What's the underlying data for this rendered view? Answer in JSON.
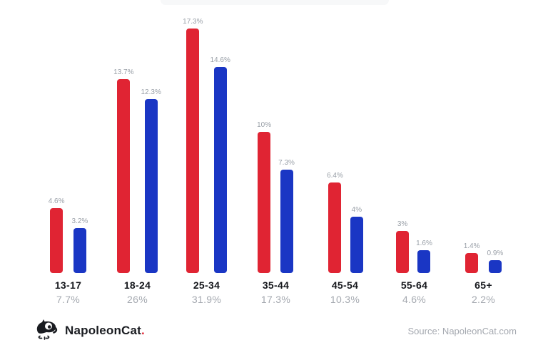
{
  "chart_data": {
    "type": "bar",
    "categories": [
      "13-17",
      "18-24",
      "25-34",
      "35-44",
      "45-54",
      "55-64",
      "65+"
    ],
    "series": [
      {
        "name": "red",
        "color": "#e02433",
        "values": [
          4.6,
          13.7,
          17.3,
          10,
          6.4,
          3,
          1.4
        ],
        "labels": [
          "4.6%",
          "13.7%",
          "17.3%",
          "10%",
          "6.4%",
          "3%",
          "1.4%"
        ]
      },
      {
        "name": "blue",
        "color": "#1a36c4",
        "values": [
          3.2,
          12.3,
          14.6,
          7.3,
          4,
          1.6,
          0.9
        ],
        "labels": [
          "3.2%",
          "12.3%",
          "14.6%",
          "7.3%",
          "4%",
          "1.6%",
          "0.9%"
        ]
      }
    ],
    "totals": [
      "7.7%",
      "26%",
      "31.9%",
      "17.3%",
      "10.3%",
      "4.6%",
      "2.2%"
    ],
    "title": "",
    "xlabel": "",
    "ylabel": "",
    "ylim": [
      0,
      17.3
    ],
    "grid": false,
    "legend": "none",
    "value_labels_shown": true
  },
  "footer": {
    "brand": "NapoleonCat",
    "brand_dot": ".",
    "source": "Source: NapoleonCat.com"
  },
  "colors": {
    "bar_red": "#e02433",
    "bar_blue": "#1a36c4",
    "category_text": "#15171c",
    "muted_text": "#a5a9b0",
    "value_label_text": "#9aa0a8",
    "logo_black": "#1a1c21"
  }
}
